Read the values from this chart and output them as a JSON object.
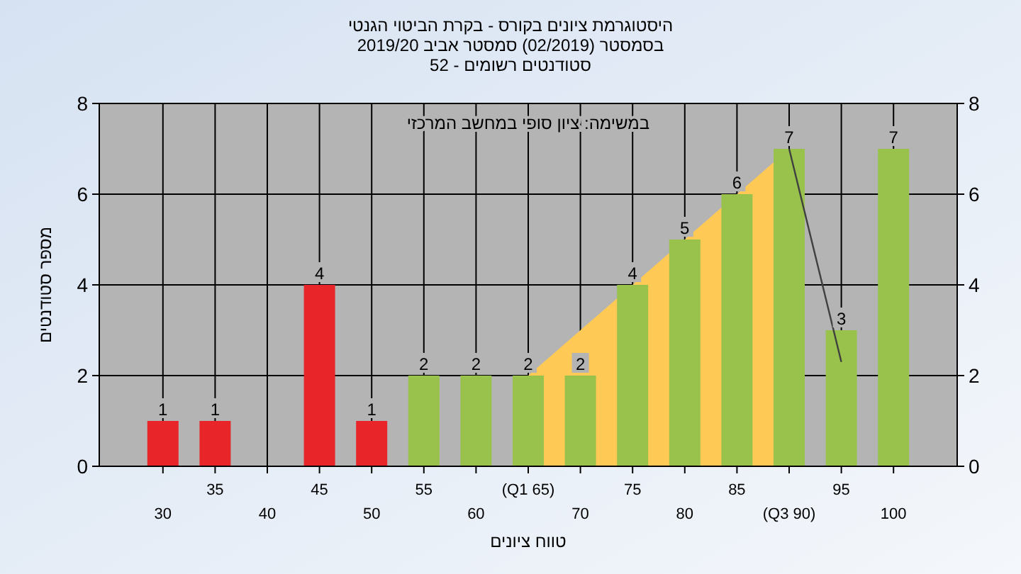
{
  "chart_data": {
    "type": "bar",
    "title": "היסטוגרמת ציונים בקורס - בקרת הביטוי הגנטי",
    "subtitle": "בסמסטר  (02/2019)  סמסטר אביב 2019/20\nסטודנטים רשומים - 52",
    "xlabel": "טווח ציונים",
    "ylabel": "מספר סטודנטים",
    "annotations": [
      "במשימה: ציון סופי במחשב המרכזי"
    ],
    "categories": [
      "30",
      "35",
      "40",
      "45",
      "50",
      "55",
      "60",
      "(Q1 65)",
      "70",
      "75",
      "80",
      "85",
      "(Q3 90)",
      "95",
      "100"
    ],
    "series": [
      {
        "type": "area",
        "color": "#ffc955",
        "values": [
          null,
          null,
          null,
          null,
          null,
          null,
          null,
          2,
          3,
          4,
          5,
          6,
          7,
          null,
          null
        ]
      },
      {
        "type": "line",
        "color": "#404040",
        "values": [
          null,
          null,
          null,
          null,
          null,
          null,
          null,
          null,
          null,
          null,
          null,
          null,
          7,
          2.3,
          null
        ]
      },
      {
        "values": [
          1,
          1,
          null,
          4,
          1,
          2,
          2,
          2,
          2,
          4,
          5,
          6,
          7,
          3,
          7
        ],
        "colors": [
          "#e8262a",
          "#e8262a",
          "#e8262a",
          "#e8262a",
          "#e8262a",
          "#99c24d",
          "#99c24d",
          "#99c24d",
          "#99c24d",
          "#99c24d",
          "#99c24d",
          "#99c24d",
          "#99c24d",
          "#99c24d",
          "#99c24d"
        ],
        "data_labels": true
      }
    ],
    "ylim": [
      0,
      8
    ],
    "yticks": [
      0,
      2,
      4,
      6,
      8
    ],
    "y2lim": [
      0,
      8
    ],
    "y2ticks": [
      0,
      2,
      4,
      6,
      8
    ],
    "grid": true
  }
}
